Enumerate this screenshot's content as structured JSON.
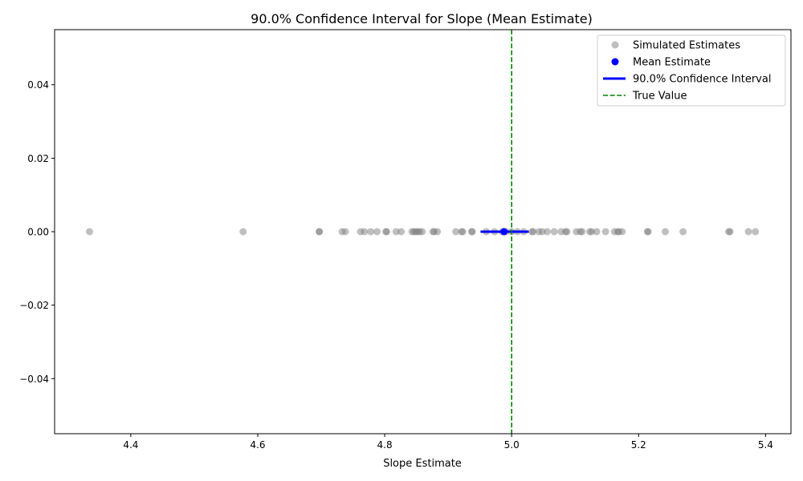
{
  "chart_data": {
    "type": "scatter",
    "title": "90.0% Confidence Interval for Slope (Mean Estimate)",
    "xlabel": "Slope Estimate",
    "ylabel": "",
    "xlim": [
      4.28,
      5.44
    ],
    "ylim": [
      -0.055,
      0.055
    ],
    "x_ticks": [
      4.4,
      4.6,
      4.8,
      5.0,
      5.2,
      5.4
    ],
    "x_tick_labels": [
      "4.4",
      "4.6",
      "4.8",
      "5.0",
      "5.2",
      "5.4"
    ],
    "y_ticks": [
      0.04,
      0.02,
      0.0,
      -0.02,
      -0.04
    ],
    "y_tick_labels": [
      "0.04",
      "0.02",
      "0.00",
      "−0.02",
      "−0.04"
    ],
    "grid": false,
    "legend_position": "top-right",
    "series": [
      {
        "name": "Simulated Estimates",
        "kind": "scatter",
        "color": "#808080",
        "x": [
          4.335,
          4.577,
          4.697,
          4.697,
          4.733,
          4.738,
          4.762,
          4.768,
          4.778,
          4.788,
          4.802,
          4.803,
          4.818,
          4.826,
          4.843,
          4.846,
          4.849,
          4.852,
          4.855,
          4.859,
          4.876,
          4.878,
          4.883,
          4.912,
          4.921,
          4.923,
          4.937,
          4.938,
          4.96,
          4.973,
          4.985,
          4.991,
          5.0,
          5.009,
          5.019,
          5.032,
          5.034,
          5.043,
          5.048,
          5.056,
          5.067,
          5.078,
          5.085,
          5.087,
          5.102,
          5.108,
          5.111,
          5.123,
          5.126,
          5.134,
          5.148,
          5.162,
          5.167,
          5.169,
          5.174,
          5.214,
          5.215,
          5.242,
          5.27,
          5.342,
          5.344,
          5.373,
          5.384
        ],
        "y": [
          0,
          0,
          0,
          0,
          0,
          0,
          0,
          0,
          0,
          0,
          0,
          0,
          0,
          0,
          0,
          0,
          0,
          0,
          0,
          0,
          0,
          0,
          0,
          0,
          0,
          0,
          0,
          0,
          0,
          0,
          0,
          0,
          0,
          0,
          0,
          0,
          0,
          0,
          0,
          0,
          0,
          0,
          0,
          0,
          0,
          0,
          0,
          0,
          0,
          0,
          0,
          0,
          0,
          0,
          0,
          0,
          0,
          0,
          0,
          0,
          0,
          0,
          0
        ]
      },
      {
        "name": "Mean Estimate",
        "kind": "point",
        "color": "#0000ff",
        "x": [
          4.988
        ],
        "y": [
          0
        ]
      },
      {
        "name": "90.0% Confidence Interval",
        "kind": "interval",
        "color": "#0000ff",
        "x": [
          4.951,
          5.027
        ],
        "y": [
          0,
          0
        ]
      },
      {
        "name": "True Value",
        "kind": "vline",
        "color": "#008000",
        "x": [
          5.0
        ]
      }
    ]
  }
}
